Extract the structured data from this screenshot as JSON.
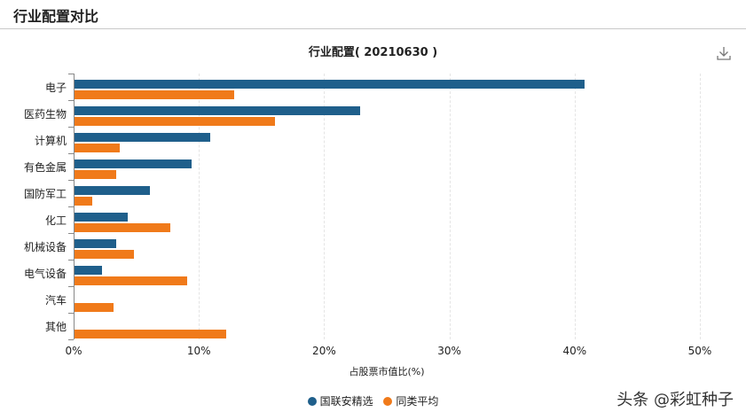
{
  "header": {
    "title": "行业配置对比"
  },
  "chart": {
    "title": "行业配置( 20210630 )",
    "download_icon": "download-icon"
  },
  "watermark": "头条 @彩虹种子",
  "colors": {
    "series1": "#1f5f8b",
    "series2": "#f07a1a"
  },
  "chart_data": {
    "type": "bar",
    "orientation": "horizontal",
    "title": "行业配置( 20210630 )",
    "xlabel": "占股票市值比(%)",
    "ylabel": "",
    "xlim": [
      0,
      50
    ],
    "xticks": [
      "0%",
      "10%",
      "20%",
      "30%",
      "40%",
      "50%"
    ],
    "grid": true,
    "legend_position": "bottom",
    "categories": [
      "电子",
      "医药生物",
      "计算机",
      "有色金属",
      "国防军工",
      "化工",
      "机械设备",
      "电气设备",
      "汽车",
      "其他"
    ],
    "series": [
      {
        "name": "国联安精选",
        "color": "#1f5f8b",
        "values": [
          40.8,
          22.9,
          10.9,
          9.4,
          6.1,
          4.3,
          3.4,
          2.3,
          0,
          0
        ]
      },
      {
        "name": "同类平均",
        "color": "#f07a1a",
        "values": [
          12.8,
          16.1,
          3.7,
          3.4,
          1.5,
          7.7,
          4.8,
          9.1,
          3.2,
          12.2
        ]
      }
    ]
  }
}
